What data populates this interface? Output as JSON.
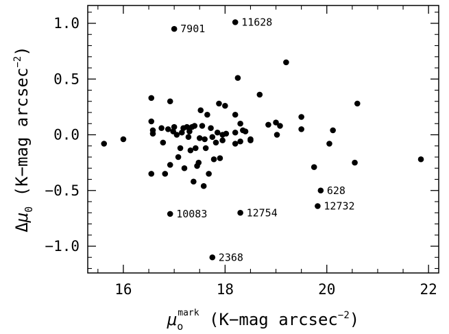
{
  "chart_data": {
    "type": "scatter",
    "xlim": [
      15.3,
      22.2
    ],
    "ylim": [
      -1.24,
      1.16
    ],
    "x_ticks": [
      16,
      18,
      20,
      22
    ],
    "y_ticks": [
      1.0,
      0.5,
      0.0,
      -0.5,
      -1.0
    ],
    "x_tick_labels": [
      "16",
      "18",
      "20",
      "22"
    ],
    "y_tick_labels": [
      "1.0",
      "0.5",
      "0.0",
      "−0.5",
      "−1.0"
    ],
    "xlabel": {
      "symbol": "μ",
      "sub": "o",
      "sup": "mark",
      "units": " (K−mag arcsec",
      "exp": "−2",
      "close": ")"
    },
    "ylabel": {
      "prefix": "Δ",
      "symbol": "μ",
      "sub": "0",
      "units": " (K−mag arcsec",
      "exp": "−2",
      "close": ")"
    },
    "points": [
      [
        15.62,
        -0.08
      ],
      [
        16.0,
        -0.04
      ],
      [
        16.55,
        0.33
      ],
      [
        16.55,
        0.12
      ],
      [
        16.58,
        0.04
      ],
      [
        16.58,
        0.01
      ],
      [
        16.55,
        -0.35
      ],
      [
        16.75,
        0.06
      ],
      [
        16.78,
        -0.07
      ],
      [
        16.82,
        -0.35
      ],
      [
        16.88,
        0.05
      ],
      [
        16.92,
        0.3
      ],
      [
        16.92,
        -0.27
      ],
      [
        16.98,
        0.03
      ],
      [
        17.0,
        0.07
      ],
      [
        17.05,
        0.0
      ],
      [
        17.08,
        -0.2
      ],
      [
        17.12,
        -0.12
      ],
      [
        17.15,
        0.02
      ],
      [
        17.18,
        0.06
      ],
      [
        17.2,
        -0.3
      ],
      [
        17.25,
        0.07
      ],
      [
        17.28,
        -0.02
      ],
      [
        17.3,
        0.03
      ],
      [
        17.32,
        -0.14
      ],
      [
        17.35,
        0.07
      ],
      [
        17.38,
        -0.42
      ],
      [
        17.4,
        0.08
      ],
      [
        17.42,
        -0.12
      ],
      [
        17.45,
        -0.28
      ],
      [
        17.48,
        -0.25
      ],
      [
        17.5,
        -0.03
      ],
      [
        17.52,
        0.22
      ],
      [
        17.55,
        0.08
      ],
      [
        17.58,
        -0.46
      ],
      [
        17.6,
        -0.04
      ],
      [
        17.62,
        -0.12
      ],
      [
        17.65,
        0.18
      ],
      [
        17.68,
        -0.35
      ],
      [
        17.72,
        0.06
      ],
      [
        17.75,
        -0.02
      ],
      [
        17.78,
        -0.22
      ],
      [
        17.82,
        -0.07
      ],
      [
        17.85,
        0.02
      ],
      [
        17.88,
        0.28
      ],
      [
        17.9,
        -0.21
      ],
      [
        17.95,
        0.0
      ],
      [
        17.95,
        -0.05
      ],
      [
        18.0,
        0.26
      ],
      [
        18.02,
        0.01
      ],
      [
        18.2,
        0.18
      ],
      [
        18.2,
        0.02
      ],
      [
        18.2,
        -0.08
      ],
      [
        18.25,
        0.51
      ],
      [
        18.3,
        0.1
      ],
      [
        18.3,
        -0.06
      ],
      [
        18.35,
        0.04
      ],
      [
        18.4,
        0.03
      ],
      [
        18.5,
        -0.05
      ],
      [
        18.5,
        -0.04
      ],
      [
        18.68,
        0.36
      ],
      [
        18.85,
        0.09
      ],
      [
        19.0,
        0.11
      ],
      [
        19.02,
        0.0
      ],
      [
        19.08,
        0.08
      ],
      [
        19.2,
        0.65
      ],
      [
        19.5,
        0.16
      ],
      [
        19.5,
        0.05
      ],
      [
        19.75,
        -0.29
      ],
      [
        20.05,
        -0.08
      ],
      [
        20.12,
        0.04
      ],
      [
        20.55,
        -0.25
      ],
      [
        20.6,
        0.28
      ],
      [
        21.85,
        -0.22
      ]
    ],
    "labeled_points": [
      {
        "x": 17.0,
        "y": 0.95,
        "label": "7901"
      },
      {
        "x": 18.2,
        "y": 1.01,
        "label": "11628"
      },
      {
        "x": 19.88,
        "y": -0.5,
        "label": "628"
      },
      {
        "x": 19.82,
        "y": -0.64,
        "label": "12732"
      },
      {
        "x": 16.92,
        "y": -0.71,
        "label": "10083"
      },
      {
        "x": 18.3,
        "y": -0.7,
        "label": "12754"
      },
      {
        "x": 17.75,
        "y": -1.1,
        "label": "2368"
      }
    ]
  }
}
